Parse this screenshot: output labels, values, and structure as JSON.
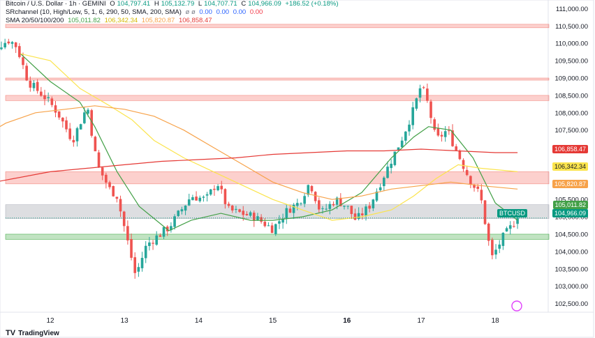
{
  "header": {
    "symbol": "Bitcoin / U.S. Dollar · 1h · GEMINI",
    "o_label": "O",
    "o": "104,797.41",
    "h_label": "H",
    "h": "105,132.79",
    "l_label": "L",
    "l": "104,707.71",
    "c_label": "C",
    "c": "104,966.09",
    "change": "+186.52 (+0.18%)",
    "sr_label": "SRchannel (10, High/Low, 5, 1, 6, 290, 50, SMA, 200, SMA)",
    "sr_symbol": "ø ø",
    "sr_values": [
      "0.00",
      "0.00",
      "0.00",
      "0.00"
    ],
    "sma_label": "SMA 20/50/100/200",
    "sma_values": [
      "105,011.82",
      "106,342.34",
      "105,820.87",
      "106,858.47"
    ]
  },
  "price_labels": {
    "sma200": "106,858.47",
    "sma50": "106,342.34",
    "sma100": "105,820.87",
    "sma20": "105,011.82",
    "symbol": "BTCUSD",
    "last": "104,966.09"
  },
  "brand": "TradingView",
  "colors": {
    "up": "#26a69a",
    "down": "#ef5350",
    "sma20": "#43a047",
    "sma50": "#fbe44d",
    "sma100": "#f7a249",
    "sma200": "#e53935",
    "zone_red": "rgba(244,67,54,0.25)",
    "zone_gray": "rgba(120,123,134,0.25)",
    "zone_green": "rgba(76,175,80,0.35)",
    "header_red": "#f23645",
    "header_blue": "#2962ff"
  },
  "chart_data": {
    "type": "candlestick",
    "title": "Bitcoin / U.S. Dollar · 1h · GEMINI",
    "ylim": [
      102250,
      111250
    ],
    "y_ticks": [
      "111,000.00",
      "110,500.00",
      "110,000.00",
      "109,500.00",
      "109,000.00",
      "108,500.00",
      "108,000.00",
      "107,500.00",
      "107,000.00",
      "106,500.00",
      "106,000.00",
      "105,500.00",
      "105,000.00",
      "104,500.00",
      "104,000.00",
      "103,500.00",
      "103,000.00",
      "102,500.00"
    ],
    "x_ticks": [
      {
        "label": "12",
        "day": 1
      },
      {
        "label": "13",
        "day": 2
      },
      {
        "label": "14",
        "day": 3
      },
      {
        "label": "15",
        "day": 4
      },
      {
        "label": "16",
        "day": 5
      },
      {
        "label": "17",
        "day": 6
      },
      {
        "label": "18",
        "day": 7
      }
    ],
    "zones": [
      {
        "low": 110450,
        "high": 110550,
        "kind": "red"
      },
      {
        "low": 108950,
        "high": 109000,
        "kind": "red"
      },
      {
        "low": 108350,
        "high": 108500,
        "kind": "red"
      },
      {
        "low": 105950,
        "high": 106300,
        "kind": "red"
      },
      {
        "low": 104950,
        "high": 105350,
        "kind": "gray"
      },
      {
        "low": 104350,
        "high": 104500,
        "kind": "green"
      }
    ],
    "anchors": [
      [
        0.0,
        109600
      ],
      [
        0.45,
        110100
      ],
      [
        0.55,
        109900
      ],
      [
        0.7,
        108900
      ],
      [
        0.95,
        108400
      ],
      [
        1.1,
        108000
      ],
      [
        1.3,
        107200
      ],
      [
        1.5,
        108200
      ],
      [
        1.63,
        106500
      ],
      [
        1.8,
        105800
      ],
      [
        1.9,
        105600
      ],
      [
        2.02,
        104500
      ],
      [
        2.15,
        103300
      ],
      [
        2.3,
        104200
      ],
      [
        2.6,
        104700
      ],
      [
        2.9,
        105600
      ],
      [
        3.1,
        105500
      ],
      [
        3.25,
        106000
      ],
      [
        3.4,
        105200
      ],
      [
        3.75,
        105000
      ],
      [
        4.0,
        104650
      ],
      [
        4.2,
        105200
      ],
      [
        4.35,
        105400
      ],
      [
        4.5,
        106000
      ],
      [
        4.65,
        105100
      ],
      [
        4.85,
        105500
      ],
      [
        5.0,
        105300
      ],
      [
        5.12,
        104900
      ],
      [
        5.3,
        105300
      ],
      [
        5.5,
        106200
      ],
      [
        5.75,
        107300
      ],
      [
        5.9,
        108100
      ],
      [
        6.0,
        108800
      ],
      [
        6.1,
        108200
      ],
      [
        6.2,
        107200
      ],
      [
        6.35,
        107500
      ],
      [
        6.5,
        106800
      ],
      [
        6.65,
        106100
      ],
      [
        6.8,
        105600
      ],
      [
        6.95,
        103800
      ],
      [
        7.1,
        104400
      ],
      [
        7.3,
        104950
      ]
    ],
    "series": [
      {
        "name": "SMA 20",
        "color": "#43a047",
        "points": [
          [
            0.6,
            109700
          ],
          [
            1.0,
            108900
          ],
          [
            1.4,
            108300
          ],
          [
            1.6,
            107600
          ],
          [
            1.9,
            106300
          ],
          [
            2.2,
            105300
          ],
          [
            2.6,
            104600
          ],
          [
            2.9,
            104900
          ],
          [
            3.3,
            105100
          ],
          [
            3.7,
            104900
          ],
          [
            4.0,
            104900
          ],
          [
            4.4,
            105000
          ],
          [
            4.8,
            105200
          ],
          [
            5.2,
            105700
          ],
          [
            5.6,
            106700
          ],
          [
            5.9,
            107300
          ],
          [
            6.1,
            107600
          ],
          [
            6.4,
            107500
          ],
          [
            6.7,
            106700
          ],
          [
            7.0,
            105400
          ],
          [
            7.3,
            104900
          ]
        ]
      },
      {
        "name": "SMA 50",
        "color": "#fbe44d",
        "points": [
          [
            0.6,
            109700
          ],
          [
            1.0,
            109500
          ],
          [
            1.4,
            108700
          ],
          [
            1.8,
            108200
          ],
          [
            2.1,
            107800
          ],
          [
            2.4,
            107200
          ],
          [
            2.8,
            106700
          ],
          [
            3.2,
            106300
          ],
          [
            3.6,
            105900
          ],
          [
            4.0,
            105500
          ],
          [
            4.4,
            105200
          ],
          [
            4.8,
            104900
          ],
          [
            5.2,
            105000
          ],
          [
            5.6,
            105200
          ],
          [
            5.9,
            105600
          ],
          [
            6.2,
            106100
          ],
          [
            6.5,
            106500
          ],
          [
            6.8,
            106400
          ],
          [
            7.3,
            106300
          ]
        ]
      },
      {
        "name": "SMA 100",
        "color": "#f7a249",
        "points": [
          [
            0.0,
            107200
          ],
          [
            0.4,
            107700
          ],
          [
            0.8,
            108000
          ],
          [
            1.2,
            108100
          ],
          [
            1.6,
            108200
          ],
          [
            2.0,
            108100
          ],
          [
            2.4,
            107900
          ],
          [
            2.8,
            107500
          ],
          [
            3.2,
            107000
          ],
          [
            3.6,
            106500
          ],
          [
            4.0,
            106000
          ],
          [
            4.4,
            105700
          ],
          [
            4.8,
            105500
          ],
          [
            5.2,
            105600
          ],
          [
            5.6,
            105800
          ],
          [
            6.0,
            105900
          ],
          [
            6.4,
            106000
          ],
          [
            6.8,
            105900
          ],
          [
            7.3,
            105800
          ]
        ]
      },
      {
        "name": "SMA 200",
        "color": "#e53935",
        "points": [
          [
            0.0,
            105900
          ],
          [
            0.5,
            106100
          ],
          [
            1.0,
            106300
          ],
          [
            1.5,
            106400
          ],
          [
            2.0,
            106500
          ],
          [
            2.5,
            106600
          ],
          [
            3.0,
            106650
          ],
          [
            3.5,
            106700
          ],
          [
            4.0,
            106800
          ],
          [
            4.5,
            106850
          ],
          [
            5.0,
            106900
          ],
          [
            5.5,
            106900
          ],
          [
            6.0,
            106950
          ],
          [
            6.5,
            106900
          ],
          [
            7.0,
            106850
          ],
          [
            7.3,
            106850
          ]
        ]
      }
    ],
    "last_candle": {
      "open": 104797.41,
      "high": 105132.79,
      "low": 104707.71,
      "close": 104966.09
    }
  }
}
